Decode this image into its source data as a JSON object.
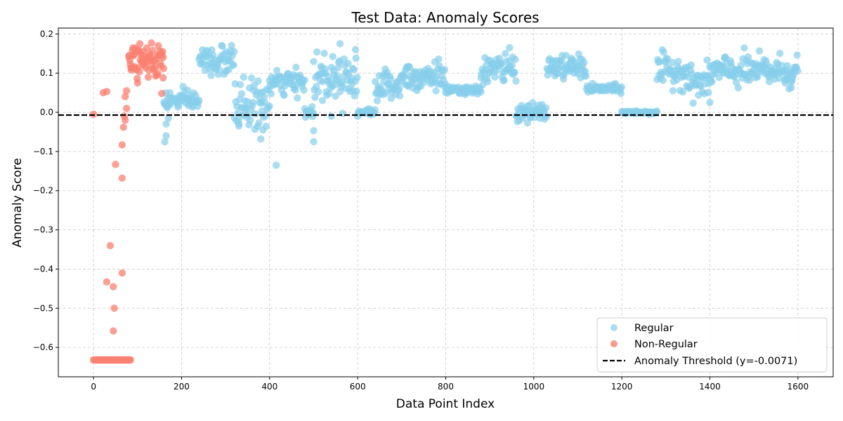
{
  "chart_data": {
    "type": "scatter",
    "title": "Test Data: Anomaly Scores",
    "xlabel": "Data Point Index",
    "ylabel": "Anomaly Score",
    "xlim": [
      -80,
      1680
    ],
    "ylim": [
      -0.675,
      0.215
    ],
    "xticks": [
      0,
      200,
      400,
      600,
      800,
      1000,
      1200,
      1400,
      1600
    ],
    "yticks": [
      0.2,
      0.1,
      0.0,
      -0.1,
      -0.2,
      -0.3,
      -0.4,
      -0.5,
      -0.6
    ],
    "ytick_labels": [
      "0.2",
      "0.1",
      "0.0",
      "−0.1",
      "−0.2",
      "−0.3",
      "−0.4",
      "−0.5",
      "−0.6"
    ],
    "grid": true,
    "legend_position": "bottom-right",
    "threshold": {
      "value": -0.0071,
      "label": "Anomaly Threshold (y=-0.0071)",
      "color": "#000000",
      "style": "dashed"
    },
    "series": [
      {
        "name": "Regular",
        "color": "#87ceeb",
        "segments": [
          [
            160,
            240,
            0.03,
            0.012
          ],
          [
            240,
            320,
            0.13,
            0.02
          ],
          [
            320,
            400,
            0.02,
            0.03
          ],
          [
            400,
            480,
            0.075,
            0.015
          ],
          [
            480,
            500,
            0.0,
            0.008
          ],
          [
            500,
            600,
            0.095,
            0.03
          ],
          [
            600,
            640,
            0.0,
            0.005
          ],
          [
            640,
            700,
            0.07,
            0.02
          ],
          [
            700,
            800,
            0.095,
            0.02
          ],
          [
            800,
            880,
            0.055,
            0.005
          ],
          [
            880,
            960,
            0.11,
            0.02
          ],
          [
            960,
            1030,
            0.0,
            0.01
          ],
          [
            1030,
            1120,
            0.115,
            0.015
          ],
          [
            1120,
            1200,
            0.06,
            0.005
          ],
          [
            1200,
            1280,
            0.0,
            0.002
          ],
          [
            1280,
            1350,
            0.105,
            0.02
          ],
          [
            1350,
            1400,
            0.075,
            0.02
          ],
          [
            1400,
            1600,
            0.105,
            0.02
          ]
        ],
        "outliers": [
          [
            162,
            -0.075
          ],
          [
            165,
            -0.06
          ],
          [
            165,
            -0.03
          ],
          [
            170,
            -0.015
          ],
          [
            330,
            -0.035
          ],
          [
            380,
            -0.068
          ],
          [
            385,
            -0.045
          ],
          [
            415,
            -0.135
          ],
          [
            500,
            -0.075
          ],
          [
            500,
            -0.047
          ],
          [
            520,
            0.03
          ],
          [
            540,
            -0.01
          ],
          [
            560,
            0.175
          ],
          [
            595,
            0.16
          ],
          [
            945,
            0.165
          ],
          [
            1400,
            0.025
          ],
          [
            1585,
            0.063
          ],
          [
            1590,
            0.095
          ]
        ]
      },
      {
        "name": "Non-Regular",
        "color": "#fa8072",
        "points": [
          [
            0,
            -0.005
          ],
          [
            22,
            0.05
          ],
          [
            30,
            0.053
          ],
          [
            38,
            -0.34
          ],
          [
            30,
            -0.433
          ],
          [
            45,
            -0.445
          ],
          [
            47,
            -0.5
          ],
          [
            45,
            -0.558
          ],
          [
            50,
            -0.133
          ],
          [
            65,
            -0.41
          ],
          [
            65,
            -0.168
          ],
          [
            65,
            -0.083
          ],
          [
            68,
            -0.038
          ],
          [
            70,
            -0.01
          ],
          [
            72,
            -0.02
          ],
          [
            72,
            0.04
          ],
          [
            75,
            0.01
          ],
          [
            75,
            0.055
          ],
          [
            100,
            0.075
          ],
          [
            155,
            0.048
          ],
          [
            158,
            0.088
          ]
        ],
        "cluster": [
          80,
          160,
          0.13,
          0.018
        ],
        "flat": [
          0,
          85,
          -0.632
        ]
      }
    ]
  }
}
